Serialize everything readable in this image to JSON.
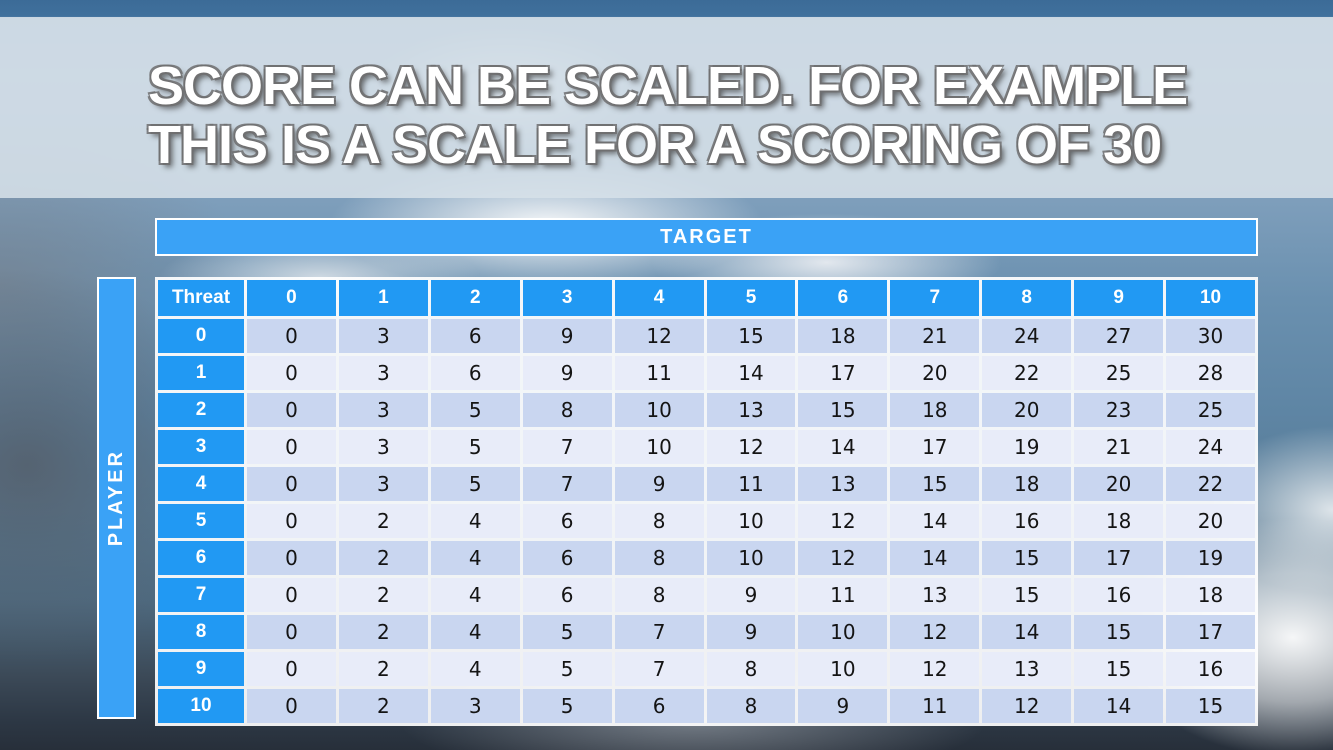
{
  "title": {
    "line1": "SCORE CAN BE SCALED. FOR EXAMPLE",
    "line2": "THIS IS A SCALE FOR A SCORING OF 30"
  },
  "table": {
    "target_label": "TARGET",
    "player_label": "PLAYER",
    "corner_label": "Threat",
    "column_headers": [
      "0",
      "1",
      "2",
      "3",
      "4",
      "5",
      "6",
      "7",
      "8",
      "9",
      "10"
    ],
    "row_headers": [
      "0",
      "1",
      "2",
      "3",
      "4",
      "5",
      "6",
      "7",
      "8",
      "9",
      "10"
    ],
    "rows": [
      [
        0,
        3,
        6,
        9,
        12,
        15,
        18,
        21,
        24,
        27,
        30
      ],
      [
        0,
        3,
        6,
        9,
        11,
        14,
        17,
        20,
        22,
        25,
        28
      ],
      [
        0,
        3,
        5,
        8,
        10,
        13,
        15,
        18,
        20,
        23,
        25
      ],
      [
        0,
        3,
        5,
        7,
        10,
        12,
        14,
        17,
        19,
        21,
        24
      ],
      [
        0,
        3,
        5,
        7,
        9,
        11,
        13,
        15,
        18,
        20,
        22
      ],
      [
        0,
        2,
        4,
        6,
        8,
        10,
        12,
        14,
        16,
        18,
        20
      ],
      [
        0,
        2,
        4,
        6,
        8,
        10,
        12,
        14,
        15,
        17,
        19
      ],
      [
        0,
        2,
        4,
        6,
        8,
        9,
        11,
        13,
        15,
        16,
        18
      ],
      [
        0,
        2,
        4,
        5,
        7,
        9,
        10,
        12,
        14,
        15,
        17
      ],
      [
        0,
        2,
        4,
        5,
        7,
        8,
        10,
        12,
        13,
        15,
        16
      ],
      [
        0,
        2,
        3,
        5,
        6,
        8,
        9,
        11,
        12,
        14,
        15
      ]
    ]
  },
  "chart_data": {
    "type": "table",
    "title": "Scale for a scoring of 30",
    "x_axis_label": "TARGET",
    "y_axis_label": "PLAYER",
    "corner_label": "Threat",
    "columns": [
      0,
      1,
      2,
      3,
      4,
      5,
      6,
      7,
      8,
      9,
      10
    ],
    "row_labels": [
      0,
      1,
      2,
      3,
      4,
      5,
      6,
      7,
      8,
      9,
      10
    ],
    "values": [
      [
        0,
        3,
        6,
        9,
        12,
        15,
        18,
        21,
        24,
        27,
        30
      ],
      [
        0,
        3,
        6,
        9,
        11,
        14,
        17,
        20,
        22,
        25,
        28
      ],
      [
        0,
        3,
        5,
        8,
        10,
        13,
        15,
        18,
        20,
        23,
        25
      ],
      [
        0,
        3,
        5,
        7,
        10,
        12,
        14,
        17,
        19,
        21,
        24
      ],
      [
        0,
        3,
        5,
        7,
        9,
        11,
        13,
        15,
        18,
        20,
        22
      ],
      [
        0,
        2,
        4,
        6,
        8,
        10,
        12,
        14,
        16,
        18,
        20
      ],
      [
        0,
        2,
        4,
        6,
        8,
        10,
        12,
        14,
        15,
        17,
        19
      ],
      [
        0,
        2,
        4,
        6,
        8,
        9,
        11,
        13,
        15,
        16,
        18
      ],
      [
        0,
        2,
        4,
        5,
        7,
        9,
        10,
        12,
        14,
        15,
        17
      ],
      [
        0,
        2,
        4,
        5,
        7,
        8,
        10,
        12,
        13,
        15,
        16
      ],
      [
        0,
        2,
        3,
        5,
        6,
        8,
        9,
        11,
        12,
        14,
        15
      ]
    ]
  },
  "colors": {
    "accent-blue": "#3aa2f6",
    "header-blue": "#2199f3",
    "row-even": "#c9d6f0",
    "row-odd": "#e8ecf9"
  }
}
